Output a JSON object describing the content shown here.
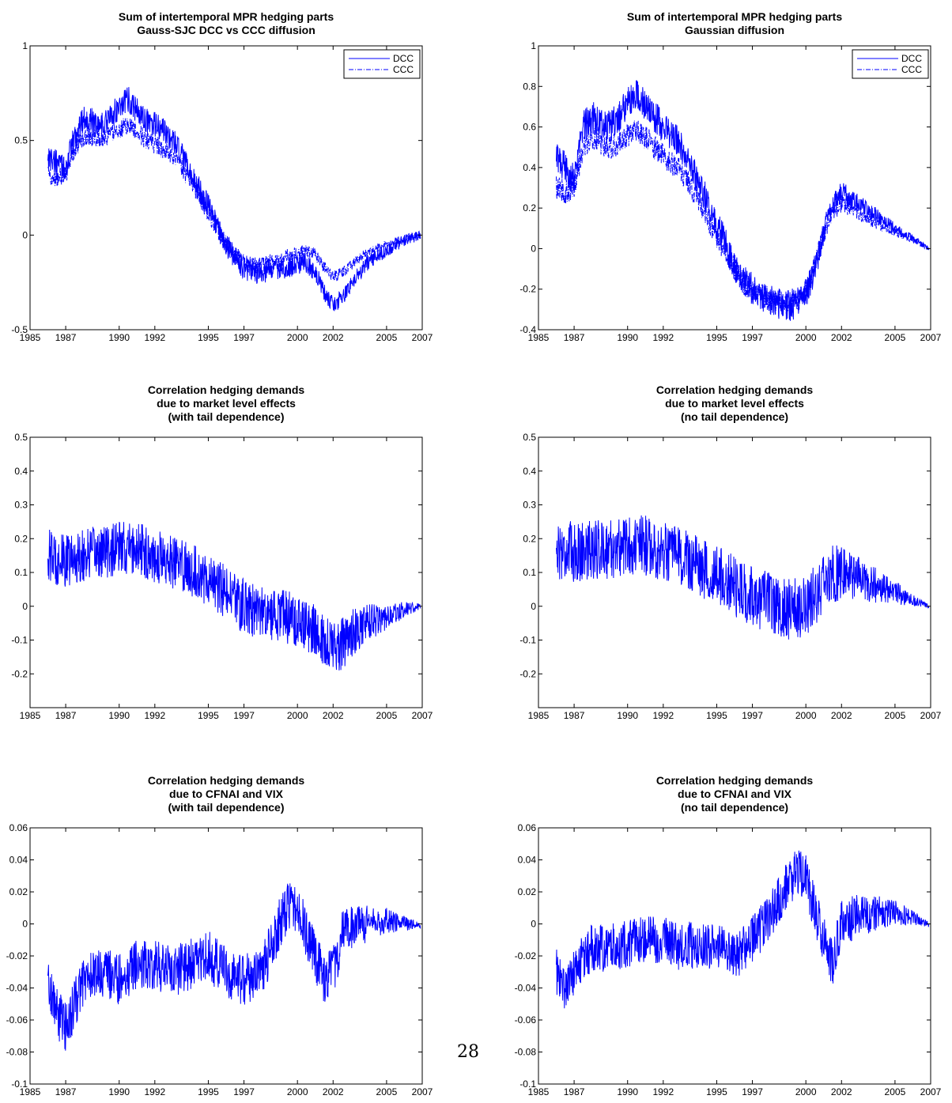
{
  "page_number": "28",
  "colors": {
    "line": "#0000ff",
    "axis": "#000000",
    "background": "#ffffff"
  },
  "chart_data": [
    {
      "type": "line",
      "title": [
        "Sum of intertemporal MPR hedging parts",
        "Gauss-SJC DCC vs CCC diffusion"
      ],
      "xlabel": "",
      "ylabel": "",
      "xlim": [
        1985,
        2007
      ],
      "ylim": [
        -0.5,
        1
      ],
      "x_ticks": [
        1985,
        1987,
        1990,
        1992,
        1995,
        1997,
        2000,
        2002,
        2005,
        2007
      ],
      "y_ticks": [
        "-0.5",
        "0",
        "0.5",
        "1"
      ],
      "legend": {
        "position": "top-right",
        "entries": [
          "DCC",
          "CCC"
        ]
      },
      "series": [
        {
          "name": "DCC",
          "style": "solid",
          "noise": 0.07,
          "noise_decay_from": 1995,
          "noise_min": 0.03,
          "x": [
            1986.0,
            1986.5,
            1987.0,
            1987.5,
            1988.0,
            1988.5,
            1989.0,
            1989.5,
            1990.0,
            1990.5,
            1991.0,
            1991.5,
            1992.0,
            1992.5,
            1993.0,
            1993.5,
            1994.0,
            1994.5,
            1995.0,
            1995.5,
            1996.0,
            1996.5,
            1997.0,
            1997.5,
            1998.0,
            1998.5,
            1999.0,
            1999.5,
            2000.0,
            2000.5,
            2001.0,
            2001.5,
            2002.0,
            2002.5,
            2003.0,
            2003.5,
            2004.0,
            2005.0,
            2006.0,
            2006.9
          ],
          "y": [
            0.42,
            0.38,
            0.35,
            0.52,
            0.62,
            0.6,
            0.58,
            0.62,
            0.68,
            0.72,
            0.66,
            0.6,
            0.58,
            0.55,
            0.5,
            0.42,
            0.32,
            0.24,
            0.15,
            0.05,
            -0.05,
            -0.12,
            -0.17,
            -0.2,
            -0.2,
            -0.18,
            -0.18,
            -0.17,
            -0.16,
            -0.15,
            -0.2,
            -0.3,
            -0.37,
            -0.33,
            -0.26,
            -0.2,
            -0.14,
            -0.08,
            -0.03,
            0.0
          ]
        },
        {
          "name": "CCC",
          "style": "dashdot",
          "noise": 0.05,
          "noise_decay_from": 1995,
          "noise_min": 0.02,
          "x": [
            1986.0,
            1986.5,
            1987.0,
            1987.5,
            1988.0,
            1988.5,
            1989.0,
            1989.5,
            1990.0,
            1990.5,
            1991.0,
            1991.5,
            1992.0,
            1992.5,
            1993.0,
            1993.5,
            1994.0,
            1994.5,
            1995.0,
            1995.5,
            1996.0,
            1996.5,
            1997.0,
            1997.5,
            1998.0,
            1998.5,
            1999.0,
            1999.5,
            2000.0,
            2000.5,
            2001.0,
            2001.5,
            2002.0,
            2002.5,
            2003.0,
            2003.5,
            2004.0,
            2005.0,
            2006.0,
            2006.9
          ],
          "y": [
            0.32,
            0.3,
            0.32,
            0.45,
            0.52,
            0.52,
            0.5,
            0.53,
            0.56,
            0.58,
            0.55,
            0.5,
            0.48,
            0.45,
            0.42,
            0.36,
            0.28,
            0.2,
            0.12,
            0.03,
            -0.05,
            -0.1,
            -0.14,
            -0.16,
            -0.16,
            -0.14,
            -0.13,
            -0.11,
            -0.1,
            -0.08,
            -0.1,
            -0.17,
            -0.22,
            -0.2,
            -0.16,
            -0.12,
            -0.09,
            -0.05,
            -0.02,
            0.0
          ]
        }
      ]
    },
    {
      "type": "line",
      "title": [
        "Sum of intertemporal MPR hedging parts",
        "Gaussian diffusion"
      ],
      "xlabel": "",
      "ylabel": "",
      "xlim": [
        1985,
        2007
      ],
      "ylim": [
        -0.4,
        1
      ],
      "x_ticks": [
        1985,
        1987,
        1990,
        1992,
        1995,
        1997,
        2000,
        2002,
        2005,
        2007
      ],
      "y_ticks": [
        "-0.4",
        "-0.2",
        "0",
        "0.2",
        "0.4",
        "0.6",
        "0.8",
        "1"
      ],
      "legend": {
        "position": "top-right",
        "entries": [
          "DCC",
          "CCC"
        ]
      },
      "series": [
        {
          "name": "DCC",
          "style": "solid",
          "noise": 0.08,
          "noise_decay_from": 1999.5,
          "noise_min": 0.01,
          "x": [
            1986.0,
            1986.5,
            1987.0,
            1987.5,
            1988.0,
            1988.5,
            1989.0,
            1989.5,
            1990.0,
            1990.5,
            1991.0,
            1991.5,
            1992.0,
            1992.5,
            1993.0,
            1993.5,
            1994.0,
            1994.5,
            1995.0,
            1995.5,
            1996.0,
            1996.5,
            1997.0,
            1997.5,
            1998.0,
            1998.5,
            1999.0,
            1999.5,
            2000.0,
            2000.5,
            2001.0,
            2001.5,
            2002.0,
            2002.5,
            2003.0,
            2004.0,
            2005.0,
            2006.0,
            2006.9
          ],
          "y": [
            0.45,
            0.4,
            0.35,
            0.6,
            0.65,
            0.62,
            0.6,
            0.65,
            0.72,
            0.76,
            0.7,
            0.65,
            0.6,
            0.56,
            0.5,
            0.42,
            0.33,
            0.22,
            0.12,
            0.02,
            -0.08,
            -0.16,
            -0.2,
            -0.23,
            -0.25,
            -0.27,
            -0.28,
            -0.27,
            -0.22,
            -0.1,
            0.08,
            0.22,
            0.28,
            0.25,
            0.22,
            0.16,
            0.1,
            0.05,
            0.0
          ]
        },
        {
          "name": "CCC",
          "style": "dashdot",
          "noise": 0.06,
          "noise_decay_from": 1999.5,
          "noise_min": 0.008,
          "x": [
            1986.0,
            1986.5,
            1987.0,
            1987.5,
            1988.0,
            1988.5,
            1989.0,
            1989.5,
            1990.0,
            1990.5,
            1991.0,
            1991.5,
            1992.0,
            1992.5,
            1993.0,
            1993.5,
            1994.0,
            1994.5,
            1995.0,
            1995.5,
            1996.0,
            1996.5,
            1997.0,
            1997.5,
            1998.0,
            1998.5,
            1999.0,
            1999.5,
            2000.0,
            2000.5,
            2001.0,
            2001.5,
            2002.0,
            2002.5,
            2003.0,
            2004.0,
            2005.0,
            2006.0,
            2006.9
          ],
          "y": [
            0.3,
            0.28,
            0.3,
            0.5,
            0.55,
            0.52,
            0.5,
            0.52,
            0.56,
            0.58,
            0.55,
            0.5,
            0.46,
            0.42,
            0.38,
            0.31,
            0.24,
            0.15,
            0.06,
            -0.03,
            -0.1,
            -0.17,
            -0.21,
            -0.23,
            -0.25,
            -0.26,
            -0.27,
            -0.26,
            -0.2,
            -0.08,
            0.07,
            0.18,
            0.22,
            0.2,
            0.17,
            0.12,
            0.08,
            0.04,
            0.0
          ]
        }
      ]
    },
    {
      "type": "line",
      "title": [
        "Correlation hedging demands",
        "due to market level effects",
        "(with tail dependence)"
      ],
      "xlabel": "",
      "ylabel": "",
      "xlim": [
        1985,
        2007
      ],
      "ylim": [
        -0.3,
        0.5
      ],
      "x_ticks": [
        1985,
        1987,
        1990,
        1992,
        1995,
        1997,
        2000,
        2002,
        2005,
        2007
      ],
      "y_ticks": [
        "-0.2",
        "-0.1",
        "0",
        "0.1",
        "0.2",
        "0.3",
        "0.4",
        "0.5"
      ],
      "series": [
        {
          "name": "",
          "style": "solid",
          "noise": 0.08,
          "noise_decay_from": 2002.5,
          "noise_min": 0.008,
          "x": [
            1986.0,
            1987.0,
            1988.0,
            1989.0,
            1990.0,
            1991.0,
            1992.0,
            1993.0,
            1994.0,
            1995.0,
            1996.0,
            1997.0,
            1998.0,
            1999.0,
            2000.0,
            2001.0,
            2001.5,
            2002.0,
            2002.5,
            2003.0,
            2004.0,
            2005.0,
            2006.0,
            2006.9
          ],
          "y": [
            0.15,
            0.13,
            0.15,
            0.16,
            0.17,
            0.17,
            0.15,
            0.13,
            0.11,
            0.08,
            0.04,
            0.0,
            -0.02,
            -0.03,
            -0.04,
            -0.07,
            -0.1,
            -0.12,
            -0.11,
            -0.08,
            -0.05,
            -0.03,
            -0.01,
            0.0
          ]
        }
      ]
    },
    {
      "type": "line",
      "title": [
        "Correlation hedging demands",
        "due to market level effects",
        "(no tail dependence)"
      ],
      "xlabel": "",
      "ylabel": "",
      "xlim": [
        1985,
        2007
      ],
      "ylim": [
        -0.3,
        0.5
      ],
      "x_ticks": [
        1985,
        1987,
        1990,
        1992,
        1995,
        1997,
        2000,
        2002,
        2005,
        2007
      ],
      "y_ticks": [
        "-0.2",
        "-0.1",
        "0",
        "0.1",
        "0.2",
        "0.3",
        "0.4",
        "0.5"
      ],
      "series": [
        {
          "name": "",
          "style": "solid",
          "noise": 0.09,
          "noise_decay_from": 2001.5,
          "noise_min": 0.005,
          "x": [
            1986.0,
            1987.0,
            1988.0,
            1989.0,
            1990.0,
            1991.0,
            1992.0,
            1993.0,
            1994.0,
            1995.0,
            1996.0,
            1997.0,
            1998.0,
            1999.0,
            2000.0,
            2001.0,
            2001.5,
            2002.0,
            2003.0,
            2004.0,
            2005.0,
            2006.0,
            2006.9
          ],
          "y": [
            0.17,
            0.16,
            0.17,
            0.17,
            0.18,
            0.18,
            0.16,
            0.14,
            0.12,
            0.09,
            0.06,
            0.03,
            0.01,
            -0.01,
            0.0,
            0.06,
            0.09,
            0.1,
            0.08,
            0.06,
            0.04,
            0.02,
            0.0
          ]
        }
      ]
    },
    {
      "type": "line",
      "title": [
        "Correlation hedging demands",
        "due to CFNAI and VIX",
        "(with tail dependence)"
      ],
      "xlabel": "",
      "ylabel": "",
      "xlim": [
        1985,
        2007
      ],
      "ylim": [
        -0.1,
        0.06
      ],
      "x_ticks": [
        1985,
        1987,
        1990,
        1992,
        1995,
        1997,
        2000,
        2002,
        2005,
        2007
      ],
      "y_ticks": [
        "-0.1",
        "-0.08",
        "-0.06",
        "-0.04",
        "-0.02",
        "0",
        "0.02",
        "0.04",
        "0.06"
      ],
      "series": [
        {
          "name": "",
          "style": "solid",
          "noise": 0.016,
          "noise_decay_from": 2002.5,
          "noise_min": 0.002,
          "x": [
            1986.0,
            1986.5,
            1987.0,
            1987.5,
            1988.0,
            1989.0,
            1990.0,
            1991.0,
            1992.0,
            1993.0,
            1994.0,
            1995.0,
            1996.0,
            1997.0,
            1998.0,
            1998.5,
            1999.0,
            1999.5,
            2000.0,
            2000.5,
            2001.0,
            2001.5,
            2002.0,
            2002.5,
            2003.0,
            2004.0,
            2005.0,
            2006.0,
            2006.9
          ],
          "y": [
            -0.035,
            -0.055,
            -0.065,
            -0.05,
            -0.035,
            -0.03,
            -0.035,
            -0.025,
            -0.025,
            -0.03,
            -0.025,
            -0.02,
            -0.03,
            -0.035,
            -0.03,
            -0.015,
            0.0,
            0.012,
            0.008,
            -0.005,
            -0.02,
            -0.035,
            -0.03,
            -0.008,
            -0.002,
            0.0,
            0.002,
            0.0,
            -0.001
          ]
        }
      ]
    },
    {
      "type": "line",
      "title": [
        "Correlation hedging demands",
        "due to CFNAI and VIX",
        "(no tail dependence)"
      ],
      "xlabel": "",
      "ylabel": "",
      "xlim": [
        1985,
        2007
      ],
      "ylim": [
        -0.1,
        0.06
      ],
      "x_ticks": [
        1985,
        1987,
        1990,
        1992,
        1995,
        1997,
        2000,
        2002,
        2005,
        2007
      ],
      "y_ticks": [
        "-0.1",
        "-0.08",
        "-0.06",
        "-0.04",
        "-0.02",
        "0",
        "0.02",
        "0.04",
        "0.06"
      ],
      "series": [
        {
          "name": "",
          "style": "solid",
          "noise": 0.015,
          "noise_decay_from": 2002.5,
          "noise_min": 0.002,
          "x": [
            1986.0,
            1986.5,
            1987.0,
            1988.0,
            1989.0,
            1990.0,
            1991.0,
            1992.0,
            1993.0,
            1994.0,
            1995.0,
            1996.0,
            1997.0,
            1998.0,
            1998.5,
            1999.0,
            1999.5,
            2000.0,
            2000.5,
            2001.0,
            2001.5,
            2002.0,
            2003.0,
            2004.0,
            2005.0,
            2006.0,
            2006.9
          ],
          "y": [
            -0.03,
            -0.04,
            -0.03,
            -0.015,
            -0.015,
            -0.012,
            -0.01,
            -0.01,
            -0.015,
            -0.012,
            -0.015,
            -0.02,
            -0.01,
            0.005,
            0.015,
            0.025,
            0.033,
            0.028,
            0.01,
            -0.01,
            -0.025,
            0.0,
            0.005,
            0.007,
            0.007,
            0.004,
            0.0
          ]
        }
      ]
    }
  ]
}
